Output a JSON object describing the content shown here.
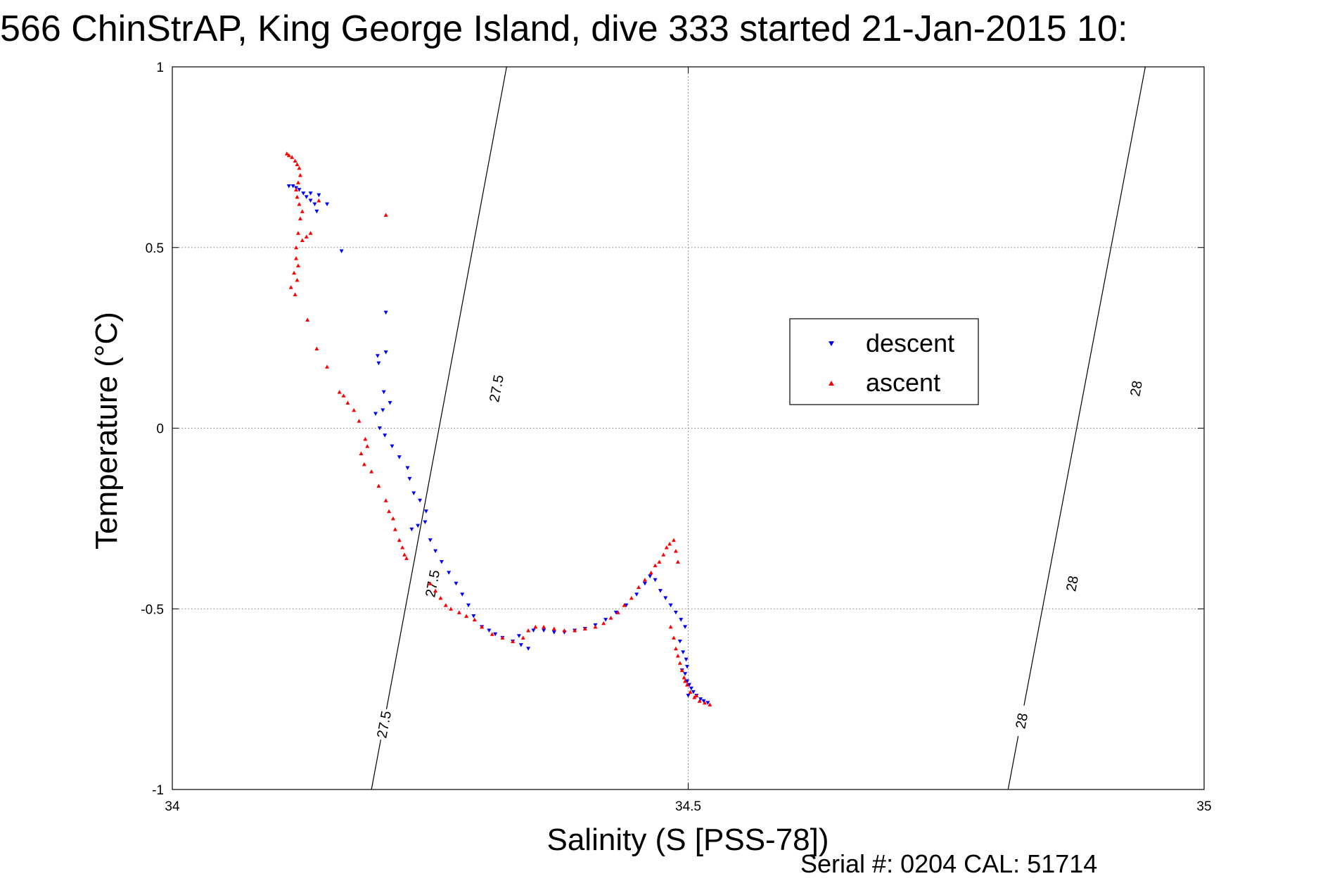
{
  "chart_data": {
    "type": "scatter",
    "title": "566 ChinStrAP, King George Island, dive 333 started 21-Jan-2015 10:",
    "xlabel": "Salinity (S [PSS-78])",
    "ylabel": "Temperature (°C)",
    "xlim": [
      34,
      35
    ],
    "ylim": [
      -1,
      1
    ],
    "xticks": [
      34,
      34.5,
      35
    ],
    "xtick_labels": [
      "34",
      "34.5",
      "35"
    ],
    "yticks": [
      1,
      0.5,
      0,
      -0.5,
      -1
    ],
    "ytick_labels": [
      "1",
      "0.5",
      "0",
      "-0.5",
      "-1"
    ],
    "grid": true,
    "legend_position": "right of center",
    "footer": "Serial #: 0204  CAL: 51714",
    "isopycnals": [
      {
        "label": "27.5",
        "x_at_ymin": 34.193,
        "x_at_ymax": 34.324,
        "label_positions": [
          [
            34.205,
            -0.82
          ],
          [
            34.252,
            -0.43
          ],
          [
            34.314,
            0.11
          ]
        ]
      },
      {
        "label": "28",
        "x_at_ymin": 34.81,
        "x_at_ymax": 34.943,
        "label_positions": [
          [
            34.823,
            -0.81
          ],
          [
            34.872,
            -0.43
          ],
          [
            34.934,
            0.11
          ]
        ]
      }
    ],
    "series": [
      {
        "name": "descent",
        "color": "#0000ff",
        "marker": "triangle-down",
        "points": [
          [
            34.113,
            0.67
          ],
          [
            34.117,
            0.67
          ],
          [
            34.12,
            0.665
          ],
          [
            34.123,
            0.66
          ],
          [
            34.127,
            0.65
          ],
          [
            34.13,
            0.64
          ],
          [
            34.134,
            0.63
          ],
          [
            34.138,
            0.62
          ],
          [
            34.14,
            0.6
          ],
          [
            34.134,
            0.65
          ],
          [
            34.142,
            0.645
          ],
          [
            34.15,
            0.62
          ],
          [
            34.164,
            0.49
          ],
          [
            34.207,
            0.32
          ],
          [
            34.199,
            0.2
          ],
          [
            34.207,
            0.21
          ],
          [
            34.2,
            0.18
          ],
          [
            34.205,
            0.1
          ],
          [
            34.211,
            0.07
          ],
          [
            34.204,
            0.05
          ],
          [
            34.197,
            0.04
          ],
          [
            34.201,
            0.0
          ],
          [
            34.206,
            -0.02
          ],
          [
            34.213,
            -0.05
          ],
          [
            34.22,
            -0.08
          ],
          [
            34.228,
            -0.11
          ],
          [
            34.23,
            -0.14
          ],
          [
            34.234,
            -0.18
          ],
          [
            34.24,
            -0.2
          ],
          [
            34.246,
            -0.23
          ],
          [
            34.245,
            -0.26
          ],
          [
            34.238,
            -0.27
          ],
          [
            34.232,
            -0.28
          ],
          [
            34.25,
            -0.31
          ],
          [
            34.255,
            -0.34
          ],
          [
            34.261,
            -0.37
          ],
          [
            34.268,
            -0.4
          ],
          [
            34.275,
            -0.43
          ],
          [
            34.281,
            -0.46
          ],
          [
            34.287,
            -0.49
          ],
          [
            34.292,
            -0.52
          ],
          [
            34.3,
            -0.55
          ],
          [
            34.307,
            -0.56
          ],
          [
            34.313,
            -0.57
          ],
          [
            34.32,
            -0.58
          ],
          [
            34.33,
            -0.59
          ],
          [
            34.338,
            -0.6
          ],
          [
            34.345,
            -0.61
          ],
          [
            34.336,
            -0.575
          ],
          [
            34.35,
            -0.56
          ],
          [
            34.36,
            -0.56
          ],
          [
            34.37,
            -0.565
          ],
          [
            34.38,
            -0.565
          ],
          [
            34.39,
            -0.56
          ],
          [
            34.4,
            -0.555
          ],
          [
            34.41,
            -0.545
          ],
          [
            34.42,
            -0.53
          ],
          [
            34.43,
            -0.51
          ],
          [
            34.44,
            -0.49
          ],
          [
            34.45,
            -0.46
          ],
          [
            34.458,
            -0.43
          ],
          [
            34.463,
            -0.41
          ],
          [
            34.468,
            -0.42
          ],
          [
            34.473,
            -0.45
          ],
          [
            34.478,
            -0.47
          ],
          [
            34.483,
            -0.49
          ],
          [
            34.488,
            -0.51
          ],
          [
            34.493,
            -0.53
          ],
          [
            34.497,
            -0.55
          ],
          [
            34.492,
            -0.59
          ],
          [
            34.495,
            -0.62
          ],
          [
            34.498,
            -0.64
          ],
          [
            34.499,
            -0.66
          ],
          [
            34.497,
            -0.68
          ],
          [
            34.499,
            -0.7
          ],
          [
            34.501,
            -0.71
          ],
          [
            34.503,
            -0.72
          ],
          [
            34.505,
            -0.73
          ],
          [
            34.508,
            -0.74
          ],
          [
            34.512,
            -0.75
          ],
          [
            34.515,
            -0.755
          ],
          [
            34.519,
            -0.76
          ],
          [
            34.5,
            -0.74
          ],
          [
            34.494,
            -0.67
          ]
        ]
      },
      {
        "name": "ascent",
        "color": "#ff0000",
        "marker": "triangle-up",
        "points": [
          [
            34.111,
            0.76
          ],
          [
            34.113,
            0.755
          ],
          [
            34.116,
            0.75
          ],
          [
            34.119,
            0.74
          ],
          [
            34.121,
            0.73
          ],
          [
            34.123,
            0.72
          ],
          [
            34.124,
            0.7
          ],
          [
            34.122,
            0.68
          ],
          [
            34.12,
            0.66
          ],
          [
            34.121,
            0.64
          ],
          [
            34.123,
            0.62
          ],
          [
            34.126,
            0.6
          ],
          [
            34.124,
            0.58
          ],
          [
            34.122,
            0.54
          ],
          [
            34.126,
            0.52
          ],
          [
            34.12,
            0.5
          ],
          [
            34.12,
            0.47
          ],
          [
            34.122,
            0.45
          ],
          [
            34.118,
            0.43
          ],
          [
            34.121,
            0.41
          ],
          [
            34.115,
            0.39
          ],
          [
            34.119,
            0.37
          ],
          [
            34.13,
            0.53
          ],
          [
            34.134,
            0.54
          ],
          [
            34.142,
            0.63
          ],
          [
            34.207,
            0.59
          ],
          [
            34.131,
            0.3
          ],
          [
            34.14,
            0.22
          ],
          [
            34.15,
            0.17
          ],
          [
            34.162,
            0.1
          ],
          [
            34.166,
            0.09
          ],
          [
            34.17,
            0.07
          ],
          [
            34.176,
            0.05
          ],
          [
            34.181,
            0.02
          ],
          [
            34.187,
            -0.03
          ],
          [
            34.189,
            -0.05
          ],
          [
            34.183,
            -0.07
          ],
          [
            34.186,
            -0.1
          ],
          [
            34.193,
            -0.12
          ],
          [
            34.2,
            -0.16
          ],
          [
            34.207,
            -0.2
          ],
          [
            34.21,
            -0.23
          ],
          [
            34.214,
            -0.25
          ],
          [
            34.216,
            -0.28
          ],
          [
            34.22,
            -0.31
          ],
          [
            34.223,
            -0.33
          ],
          [
            34.225,
            -0.35
          ],
          [
            34.227,
            -0.36
          ],
          [
            34.25,
            -0.43
          ],
          [
            34.255,
            -0.45
          ],
          [
            34.26,
            -0.47
          ],
          [
            34.265,
            -0.49
          ],
          [
            34.27,
            -0.5
          ],
          [
            34.278,
            -0.51
          ],
          [
            34.285,
            -0.52
          ],
          [
            34.293,
            -0.53
          ],
          [
            34.3,
            -0.55
          ],
          [
            34.31,
            -0.57
          ],
          [
            34.32,
            -0.58
          ],
          [
            34.33,
            -0.59
          ],
          [
            34.34,
            -0.58
          ],
          [
            34.345,
            -0.56
          ],
          [
            34.352,
            -0.55
          ],
          [
            34.36,
            -0.55
          ],
          [
            34.37,
            -0.555
          ],
          [
            34.38,
            -0.56
          ],
          [
            34.39,
            -0.56
          ],
          [
            34.4,
            -0.555
          ],
          [
            34.41,
            -0.55
          ],
          [
            34.418,
            -0.54
          ],
          [
            34.425,
            -0.525
          ],
          [
            34.432,
            -0.51
          ],
          [
            34.438,
            -0.49
          ],
          [
            34.445,
            -0.47
          ],
          [
            34.452,
            -0.44
          ],
          [
            34.458,
            -0.42
          ],
          [
            34.464,
            -0.4
          ],
          [
            34.468,
            -0.38
          ],
          [
            34.472,
            -0.37
          ],
          [
            34.476,
            -0.35
          ],
          [
            34.479,
            -0.33
          ],
          [
            34.482,
            -0.32
          ],
          [
            34.486,
            -0.31
          ],
          [
            34.488,
            -0.34
          ],
          [
            34.49,
            -0.37
          ],
          [
            34.483,
            -0.55
          ],
          [
            34.486,
            -0.58
          ],
          [
            34.488,
            -0.61
          ],
          [
            34.49,
            -0.63
          ],
          [
            34.492,
            -0.65
          ],
          [
            34.494,
            -0.67
          ],
          [
            34.496,
            -0.69
          ],
          [
            34.499,
            -0.71
          ],
          [
            34.502,
            -0.73
          ],
          [
            34.506,
            -0.745
          ],
          [
            34.511,
            -0.755
          ],
          [
            34.516,
            -0.76
          ],
          [
            34.521,
            -0.765
          ],
          [
            34.508,
            -0.74
          ],
          [
            34.497,
            -0.7
          ]
        ]
      }
    ]
  }
}
